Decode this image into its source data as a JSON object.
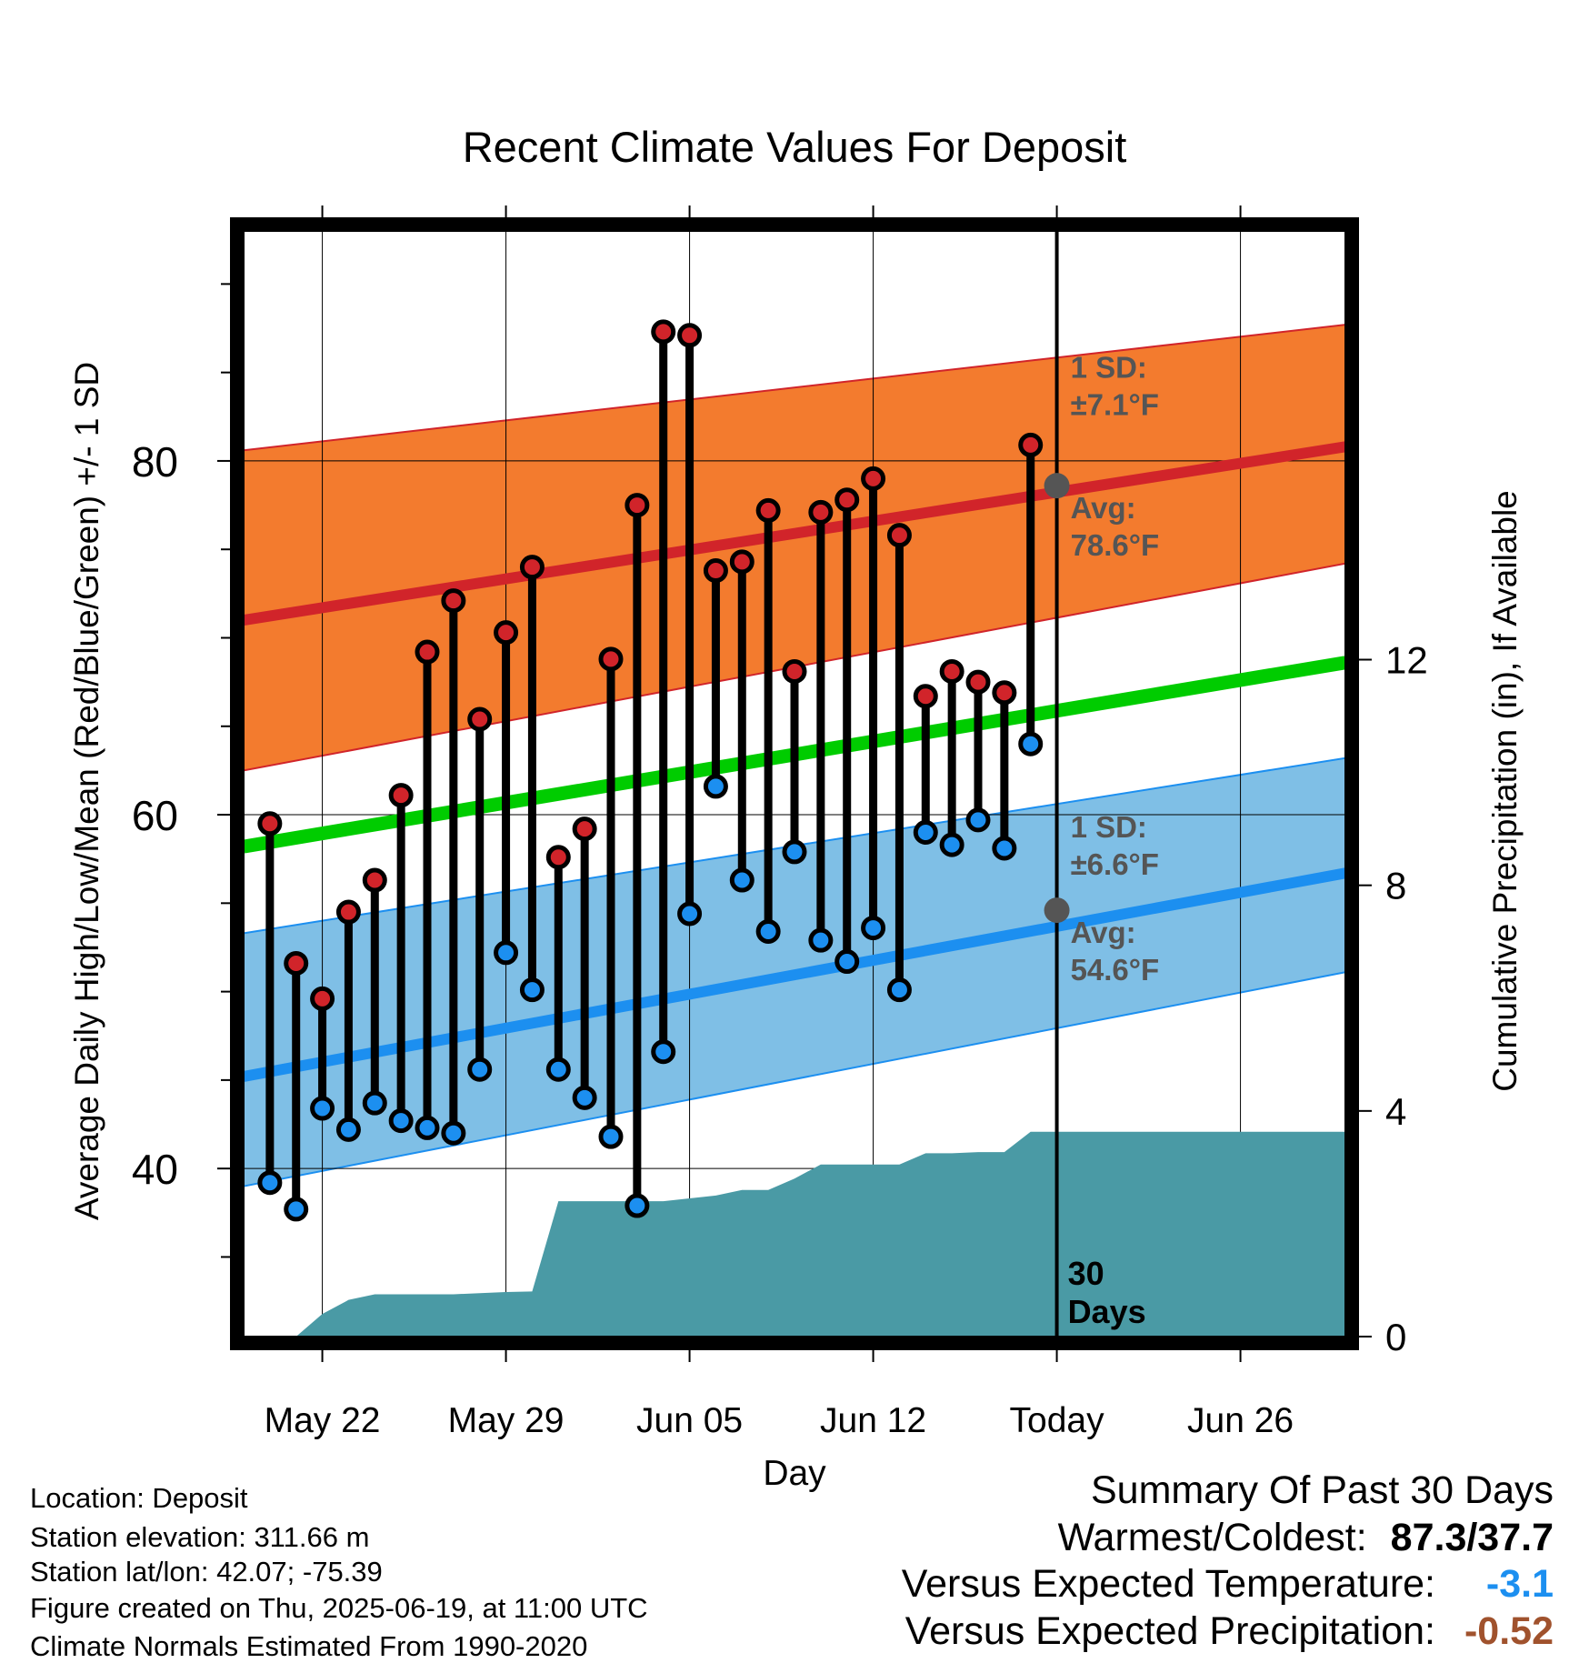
{
  "chart_data": {
    "type": "line",
    "title": "Recent Climate Values For Deposit",
    "xlabel": "Day",
    "ylabel": "Average Daily High/Low/Mean (Red/Blue/Green) +/- 1 SD",
    "y2label": "Cumulative Precipitation (in), If Available",
    "xlim": [
      "2025-05-19",
      "2025-06-30"
    ],
    "ylim": [
      30.5,
      93
    ],
    "y2lim": [
      0,
      19.6
    ],
    "yticks": [
      "40",
      "60",
      "80"
    ],
    "y2ticks": [
      "0",
      "4",
      "8",
      "12"
    ],
    "xticks": [
      {
        "date": "2025-05-22",
        "label": "May 22"
      },
      {
        "date": "2025-05-29",
        "label": "May 29"
      },
      {
        "date": "2025-06-05",
        "label": "Jun 05"
      },
      {
        "date": "2025-06-12",
        "label": "Jun 12"
      },
      {
        "date": "2025-06-19",
        "label": "Today"
      },
      {
        "date": "2025-06-26",
        "label": "Jun 26"
      }
    ],
    "grid": true,
    "today": "2025-06-19",
    "window_label": "30 Days",
    "normals": {
      "dates": [
        "2025-05-19",
        "2025-06-30"
      ],
      "avg_high": [
        71.0,
        80.8
      ],
      "high_upper": [
        80.6,
        87.7
      ],
      "high_lower": [
        62.5,
        74.2
      ],
      "avg_mean": [
        58.2,
        68.6
      ],
      "avg_low": [
        45.2,
        56.7
      ],
      "low_upper": [
        53.3,
        63.2
      ],
      "low_lower": [
        39.0,
        51.1
      ],
      "high_sd_label": "1 SD:",
      "high_sd_value": "±7.1°F",
      "high_avg_label": "Avg:",
      "high_avg_value": "78.6°F",
      "high_avg_today": 78.6,
      "low_sd_label": "1 SD:",
      "low_sd_value": "±6.6°F",
      "low_avg_label": "Avg:",
      "low_avg_value": "54.6°F",
      "low_avg_today": 54.6
    },
    "observations": {
      "dates": [
        "2025-05-20",
        "2025-05-21",
        "2025-05-22",
        "2025-05-23",
        "2025-05-24",
        "2025-05-25",
        "2025-05-26",
        "2025-05-27",
        "2025-05-28",
        "2025-05-29",
        "2025-05-30",
        "2025-05-31",
        "2025-06-01",
        "2025-06-02",
        "2025-06-03",
        "2025-06-04",
        "2025-06-05",
        "2025-06-06",
        "2025-06-07",
        "2025-06-08",
        "2025-06-09",
        "2025-06-10",
        "2025-06-11",
        "2025-06-12",
        "2025-06-13",
        "2025-06-14",
        "2025-06-15",
        "2025-06-16",
        "2025-06-17",
        "2025-06-18"
      ],
      "high": [
        59.5,
        51.6,
        49.6,
        54.5,
        56.3,
        61.1,
        69.2,
        72.1,
        65.4,
        70.3,
        74.0,
        57.6,
        59.2,
        68.8,
        77.5,
        87.3,
        87.1,
        73.8,
        74.3,
        77.2,
        68.1,
        77.1,
        77.8,
        79.0,
        75.8,
        66.7,
        68.1,
        67.5,
        66.9,
        80.9
      ],
      "low": [
        39.2,
        37.7,
        43.4,
        42.2,
        43.7,
        42.7,
        42.3,
        42.0,
        45.6,
        52.2,
        50.1,
        45.6,
        44.0,
        41.8,
        37.9,
        46.6,
        54.4,
        61.6,
        56.3,
        53.4,
        57.9,
        52.9,
        51.7,
        53.6,
        50.1,
        59.0,
        58.3,
        59.7,
        58.1,
        64.0
      ]
    },
    "precipitation": {
      "dates": [
        "2025-05-20",
        "2025-05-21",
        "2025-05-22",
        "2025-05-23",
        "2025-05-24",
        "2025-05-25",
        "2025-05-26",
        "2025-05-27",
        "2025-05-28",
        "2025-05-29",
        "2025-05-30",
        "2025-05-31",
        "2025-06-01",
        "2025-06-02",
        "2025-06-03",
        "2025-06-04",
        "2025-06-05",
        "2025-06-06",
        "2025-06-07",
        "2025-06-08",
        "2025-06-09",
        "2025-06-10",
        "2025-06-11",
        "2025-06-12",
        "2025-06-13",
        "2025-06-14",
        "2025-06-15",
        "2025-06-16",
        "2025-06-17",
        "2025-06-18",
        "2025-06-19",
        "2025-06-30"
      ],
      "cumulative": [
        0.0,
        0.0,
        0.4,
        0.65,
        0.75,
        0.75,
        0.75,
        0.75,
        0.77,
        0.79,
        0.8,
        2.4,
        2.4,
        2.4,
        2.4,
        2.4,
        2.45,
        2.5,
        2.6,
        2.6,
        2.8,
        3.05,
        3.05,
        3.05,
        3.05,
        3.25,
        3.25,
        3.27,
        3.27,
        3.63,
        3.63,
        3.63
      ]
    },
    "colors": {
      "high_band": "#f37b2e",
      "high_line": "#d1242a",
      "mean_line": "#00cc00",
      "low_band": "#7fbfe6",
      "low_line": "#1c8ff0",
      "precip": "#4a9aa5",
      "high_dot": "#d1242a",
      "low_dot": "#1c8ff0",
      "annotation": "#555555"
    }
  },
  "info": {
    "location": "Location: Deposit",
    "elevation": "Station elevation: 311.66 m",
    "latlon": "Station lat/lon: 42.07; -75.39",
    "created": "Figure created on Thu, 2025-06-19, at 11:00 UTC",
    "normals": "Climate Normals Estimated From 1990-2020"
  },
  "summary": {
    "title": "Summary Of Past 30 Days",
    "warm_cold_label": "Warmest/Coldest:",
    "warm_cold_value": "87.3/37.7",
    "temp_label": "Versus Expected Temperature:",
    "temp_value": "-3.1",
    "temp_color": "#1c8ff0",
    "precip_label": "Versus Expected Precipitation:",
    "precip_value": "-0.52",
    "precip_color": "#a0522d"
  }
}
